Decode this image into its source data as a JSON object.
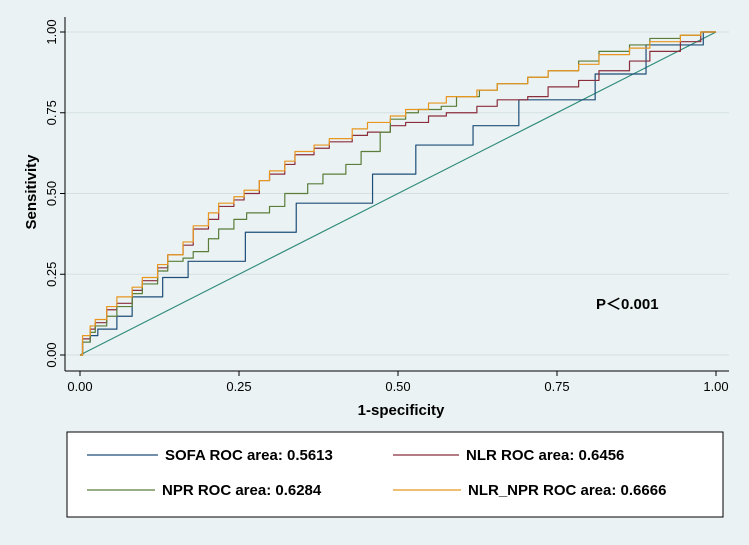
{
  "chart_data": {
    "type": "line",
    "title": "",
    "xlabel": "1-specificity",
    "ylabel": "Sensitivity",
    "xlim": [
      0,
      1
    ],
    "ylim": [
      0,
      1
    ],
    "xticks": [
      "0.00",
      "0.25",
      "0.50",
      "0.75",
      "1.00"
    ],
    "yticks": [
      "0.00",
      "0.25",
      "0.50",
      "0.75",
      "1.00"
    ],
    "grid": true,
    "annotation": "P＜0.001",
    "legend_position": "bottom",
    "reference_line": {
      "color": "#2e8b7a",
      "x": [
        0,
        1
      ],
      "y": [
        0,
        1
      ]
    },
    "series": [
      {
        "name": "SOFA",
        "legend_label": "SOFA ROC area: 0.5613",
        "color": "#1f4e79",
        "x": [
          0,
          0.01,
          0.02,
          0.04,
          0.07,
          0.1,
          0.15,
          0.2,
          0.3,
          0.4,
          0.5,
          0.57,
          0.65,
          0.75,
          0.85,
          0.95,
          1
        ],
        "y": [
          0,
          0.04,
          0.06,
          0.08,
          0.12,
          0.18,
          0.24,
          0.29,
          0.38,
          0.47,
          0.56,
          0.65,
          0.71,
          0.79,
          0.87,
          0.96,
          1
        ]
      },
      {
        "name": "NLR",
        "legend_label": "NLR ROC area: 0.6456",
        "color": "#8b2e3c",
        "x": [
          0,
          0.01,
          0.02,
          0.03,
          0.05,
          0.07,
          0.09,
          0.11,
          0.13,
          0.15,
          0.17,
          0.19,
          0.21,
          0.23,
          0.25,
          0.27,
          0.29,
          0.31,
          0.33,
          0.35,
          0.38,
          0.41,
          0.44,
          0.47,
          0.5,
          0.53,
          0.56,
          0.6,
          0.64,
          0.68,
          0.72,
          0.76,
          0.8,
          0.84,
          0.88,
          0.92,
          0.96,
          1
        ],
        "y": [
          0,
          0.05,
          0.08,
          0.1,
          0.14,
          0.16,
          0.2,
          0.23,
          0.27,
          0.31,
          0.34,
          0.39,
          0.42,
          0.46,
          0.48,
          0.5,
          0.54,
          0.56,
          0.59,
          0.62,
          0.64,
          0.66,
          0.68,
          0.69,
          0.71,
          0.72,
          0.74,
          0.75,
          0.77,
          0.79,
          0.8,
          0.83,
          0.85,
          0.88,
          0.91,
          0.94,
          0.97,
          1
        ]
      },
      {
        "name": "NPR",
        "legend_label": "NPR ROC area: 0.6284",
        "color": "#5a7d3a",
        "x": [
          0,
          0.01,
          0.02,
          0.03,
          0.05,
          0.07,
          0.09,
          0.11,
          0.13,
          0.15,
          0.17,
          0.19,
          0.21,
          0.23,
          0.25,
          0.28,
          0.31,
          0.34,
          0.37,
          0.4,
          0.43,
          0.46,
          0.48,
          0.5,
          0.52,
          0.55,
          0.58,
          0.61,
          0.64,
          0.68,
          0.72,
          0.76,
          0.8,
          0.84,
          0.88,
          0.92,
          0.96,
          1
        ],
        "y": [
          0,
          0.04,
          0.07,
          0.09,
          0.12,
          0.15,
          0.19,
          0.22,
          0.26,
          0.29,
          0.3,
          0.32,
          0.36,
          0.39,
          0.42,
          0.44,
          0.46,
          0.5,
          0.53,
          0.56,
          0.59,
          0.63,
          0.69,
          0.73,
          0.75,
          0.76,
          0.77,
          0.8,
          0.82,
          0.84,
          0.86,
          0.88,
          0.91,
          0.94,
          0.96,
          0.98,
          0.99,
          1
        ]
      },
      {
        "name": "NLR_NPR",
        "legend_label": "NLR_NPR ROC area: 0.6666",
        "color": "#e8961e",
        "x": [
          0,
          0.01,
          0.02,
          0.03,
          0.05,
          0.07,
          0.09,
          0.11,
          0.13,
          0.15,
          0.17,
          0.19,
          0.21,
          0.23,
          0.25,
          0.27,
          0.29,
          0.31,
          0.33,
          0.35,
          0.38,
          0.41,
          0.44,
          0.47,
          0.5,
          0.53,
          0.56,
          0.6,
          0.64,
          0.68,
          0.72,
          0.76,
          0.8,
          0.84,
          0.88,
          0.92,
          0.96,
          1
        ],
        "y": [
          0,
          0.06,
          0.09,
          0.11,
          0.15,
          0.18,
          0.21,
          0.24,
          0.28,
          0.31,
          0.35,
          0.4,
          0.44,
          0.47,
          0.49,
          0.51,
          0.54,
          0.57,
          0.6,
          0.63,
          0.65,
          0.67,
          0.7,
          0.72,
          0.74,
          0.76,
          0.78,
          0.8,
          0.82,
          0.84,
          0.86,
          0.88,
          0.9,
          0.93,
          0.95,
          0.97,
          0.99,
          1
        ]
      }
    ]
  }
}
